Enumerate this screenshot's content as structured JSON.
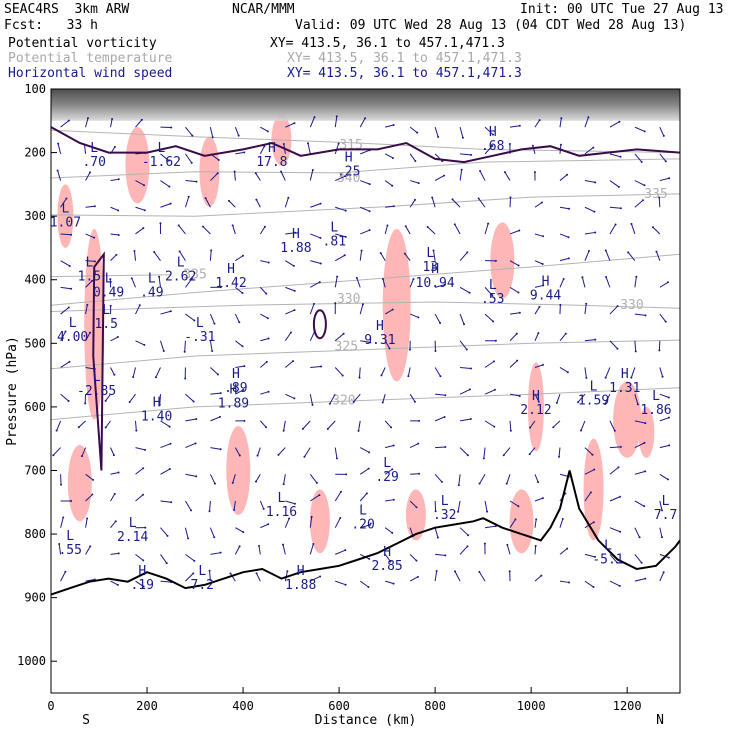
{
  "header": {
    "left1": "SEAC4RS  3km ARW",
    "center1": "NCAR/MMM",
    "right1": "Init: 00 UTC Tue 27 Aug 13",
    "left2": "Fcst:   33 h",
    "right2": "Valid: 09 UTC Wed 28 Aug 13 (04 CDT Wed 28 Aug 13)",
    "field1": "Potential vorticity",
    "field2": "Potential temperature",
    "field3": "Horizontal wind speed",
    "xy1": "XY= 413.5, 36.1 to 457.1,471.3",
    "xy2": "XY= 413.5, 36.1 to 457.1,471.3",
    "xy3": "XY= 413.5, 36.1 to 457.1,471.3"
  },
  "colors": {
    "pv_contour": "#3a0a4a",
    "pv_fill": "#ffb6b6",
    "theta": "#b4b4b4",
    "wind": "#1a1a8c",
    "terrain": "#000000",
    "strat": "#555555"
  },
  "chart_data": {
    "type": "cross-section",
    "xlabel": "Distance (km)",
    "ylabel": "Pressure (hPa)",
    "xlim": [
      0,
      1310
    ],
    "ylim": [
      100,
      1050
    ],
    "x_ticks": [
      "0",
      "200",
      "400",
      "600",
      "800",
      "1000",
      "1200"
    ],
    "x_tick_values": [
      0,
      200,
      400,
      600,
      800,
      1000,
      1200
    ],
    "y_ticks": [
      "100",
      "200",
      "300",
      "400",
      "500",
      "600",
      "700",
      "800",
      "900",
      "1000"
    ],
    "y_tick_values": [
      100,
      200,
      300,
      400,
      500,
      600,
      700,
      800,
      900,
      1000
    ],
    "end_left": "S",
    "end_right": "N",
    "theta_contours": [
      {
        "label": "315",
        "values": [
          [
            0,
            165
          ],
          [
            300,
            175
          ],
          [
            640,
            185
          ],
          [
            900,
            195
          ],
          [
            1310,
            200
          ]
        ],
        "label_at": [
          625,
          188
        ]
      },
      {
        "label": "335",
        "values": [
          [
            0,
            298
          ],
          [
            300,
            300
          ],
          [
            700,
            285
          ],
          [
            1000,
            270
          ],
          [
            1310,
            265
          ]
        ],
        "label_at": [
          1260,
          265
        ]
      },
      {
        "label": "340",
        "values": [
          [
            0,
            240
          ],
          [
            300,
            230
          ],
          [
            600,
            232
          ],
          [
            900,
            215
          ],
          [
            1310,
            210
          ]
        ],
        "label_at": [
          620,
          240
        ]
      },
      {
        "label": "330",
        "values": [
          [
            0,
            440
          ],
          [
            300,
            420
          ],
          [
            650,
            400
          ],
          [
            1000,
            380
          ],
          [
            1310,
            360
          ]
        ],
        "label_at": [
          620,
          430
        ]
      },
      {
        "label": "330",
        "values": [
          [
            0,
            450
          ],
          [
            400,
            440
          ],
          [
            800,
            435
          ],
          [
            1100,
            440
          ],
          [
            1310,
            445
          ]
        ],
        "label_at": [
          1210,
          440
        ]
      },
      {
        "label": "325",
        "values": [
          [
            0,
            540
          ],
          [
            300,
            520
          ],
          [
            650,
            510
          ],
          [
            1000,
            500
          ],
          [
            1310,
            495
          ]
        ],
        "label_at": [
          615,
          505
        ]
      },
      {
        "label": "320",
        "values": [
          [
            0,
            620
          ],
          [
            300,
            600
          ],
          [
            650,
            590
          ],
          [
            1000,
            580
          ],
          [
            1310,
            570
          ]
        ],
        "label_at": [
          610,
          590
        ]
      },
      {
        "label": "335",
        "values": [
          [
            0,
            395
          ],
          [
            250,
            392
          ]
        ],
        "label_at": [
          300,
          392
        ]
      }
    ],
    "terrain_pressure": [
      [
        0,
        895
      ],
      [
        40,
        885
      ],
      [
        80,
        875
      ],
      [
        120,
        870
      ],
      [
        160,
        875
      ],
      [
        200,
        860
      ],
      [
        240,
        870
      ],
      [
        280,
        885
      ],
      [
        320,
        880
      ],
      [
        360,
        870
      ],
      [
        400,
        860
      ],
      [
        440,
        855
      ],
      [
        480,
        870
      ],
      [
        520,
        860
      ],
      [
        560,
        855
      ],
      [
        600,
        850
      ],
      [
        640,
        840
      ],
      [
        680,
        830
      ],
      [
        720,
        815
      ],
      [
        760,
        800
      ],
      [
        800,
        790
      ],
      [
        840,
        785
      ],
      [
        880,
        780
      ],
      [
        900,
        775
      ],
      [
        940,
        790
      ],
      [
        980,
        800
      ],
      [
        1020,
        810
      ],
      [
        1040,
        790
      ],
      [
        1060,
        760
      ],
      [
        1080,
        700
      ],
      [
        1100,
        760
      ],
      [
        1140,
        810
      ],
      [
        1180,
        840
      ],
      [
        1220,
        855
      ],
      [
        1260,
        850
      ],
      [
        1300,
        820
      ],
      [
        1310,
        810
      ]
    ],
    "hl_labels": [
      {
        "letter": "L",
        "value": ".70",
        "x": 90,
        "p": 215
      },
      {
        "letter": "L",
        "value": "-1.62",
        "x": 230,
        "p": 215
      },
      {
        "letter": "H",
        "value": "17.8",
        "x": 460,
        "p": 215
      },
      {
        "letter": "L",
        "value": "1.07",
        "x": 30,
        "p": 310
      },
      {
        "letter": "H",
        "value": "1.88",
        "x": 510,
        "p": 350
      },
      {
        "letter": "L",
        "value": ".81",
        "x": 590,
        "p": 340
      },
      {
        "letter": "L",
        "value": "1.5",
        "x": 80,
        "p": 395
      },
      {
        "letter": "L",
        "value": "2.62",
        "x": 270,
        "p": 395
      },
      {
        "letter": "H",
        "value": "1.42",
        "x": 375,
        "p": 405
      },
      {
        "letter": "L",
        "value": "13",
        "x": 790,
        "p": 380
      },
      {
        "letter": "H",
        "value": "10.94",
        "x": 800,
        "p": 405
      },
      {
        "letter": "L",
        "value": ".53",
        "x": 920,
        "p": 430
      },
      {
        "letter": "H",
        "value": "9.44",
        "x": 1030,
        "p": 425
      },
      {
        "letter": "L",
        "value": "0.49",
        "x": 120,
        "p": 420
      },
      {
        "letter": "L",
        "value": ".49",
        "x": 210,
        "p": 420
      },
      {
        "letter": "L",
        "value": "4.00",
        "x": 45,
        "p": 490
      },
      {
        "letter": "L",
        "value": "1.5",
        "x": 115,
        "p": 470
      },
      {
        "letter": "L",
        "value": "-.31",
        "x": 310,
        "p": 490
      },
      {
        "letter": "H",
        "value": "9.31",
        "x": 685,
        "p": 495
      },
      {
        "letter": "L",
        "value": "-2.85",
        "x": 95,
        "p": 575
      },
      {
        "letter": "H",
        "value": ".89",
        "x": 385,
        "p": 570
      },
      {
        "letter": "H",
        "value": "1.89",
        "x": 380,
        "p": 595
      },
      {
        "letter": "H",
        "value": "1.40",
        "x": 220,
        "p": 615
      },
      {
        "letter": "H",
        "value": "1.31",
        "x": 1195,
        "p": 570
      },
      {
        "letter": "L",
        "value": "1.59",
        "x": 1130,
        "p": 590
      },
      {
        "letter": "L",
        "value": "1.86",
        "x": 1260,
        "p": 605
      },
      {
        "letter": "H",
        "value": "2.12",
        "x": 1010,
        "p": 605
      },
      {
        "letter": "L",
        "value": ".29",
        "x": 700,
        "p": 710
      },
      {
        "letter": "L",
        "value": "1.16",
        "x": 480,
        "p": 765
      },
      {
        "letter": "L",
        "value": ".20",
        "x": 650,
        "p": 785
      },
      {
        "letter": "L",
        "value": ".32",
        "x": 820,
        "p": 770
      },
      {
        "letter": "L",
        "value": "2.14",
        "x": 170,
        "p": 805
      },
      {
        "letter": "L",
        "value": "7.7",
        "x": 1280,
        "p": 770
      },
      {
        "letter": "L",
        "value": ".55",
        "x": 40,
        "p": 825
      },
      {
        "letter": "H",
        "value": "2.85",
        "x": 700,
        "p": 850
      },
      {
        "letter": "L",
        "value": "-5.1",
        "x": 1160,
        "p": 840
      },
      {
        "letter": "H",
        "value": ".19",
        "x": 190,
        "p": 880
      },
      {
        "letter": "L",
        "value": "7.2",
        "x": 315,
        "p": 880
      },
      {
        "letter": "H",
        "value": "1.88",
        "x": 520,
        "p": 880
      },
      {
        "letter": "H",
        "value": ".68",
        "x": 920,
        "p": 190
      },
      {
        "letter": "H",
        "value": ".25",
        "x": 620,
        "p": 230
      }
    ]
  }
}
